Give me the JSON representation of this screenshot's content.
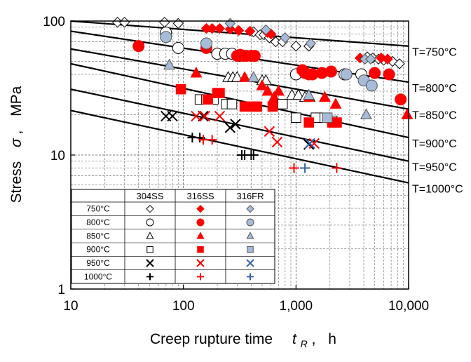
{
  "chart_data": {
    "type": "scatter",
    "xlabel": "Creep rupture time",
    "xlabel_symbol": "t",
    "xlabel_subscript": "R",
    "xlabel_unit": "h",
    "ylabel": "Stress",
    "ylabel_symbol": "σ",
    "ylabel_unit": "MPa",
    "x_scale": "log",
    "y_scale": "log",
    "xlim": [
      10,
      10000
    ],
    "ylim": [
      1,
      100
    ],
    "x_ticks": [
      10,
      100,
      1000,
      10000
    ],
    "x_tick_labels": [
      "10",
      "100",
      "1,000",
      "10,000"
    ],
    "y_ticks": [
      1,
      10,
      100
    ],
    "y_tick_labels": [
      "1",
      "10",
      "100"
    ],
    "grid": true,
    "curves": [
      {
        "label": "T=750°C",
        "points": [
          [
            10,
            100
          ],
          [
            10000,
            65
          ]
        ]
      },
      {
        "label": "T=800°C",
        "points": [
          [
            10,
            84
          ],
          [
            10000,
            35
          ]
        ]
      },
      {
        "label": "T=850°C",
        "points": [
          [
            10,
            62
          ],
          [
            10000,
            22
          ]
        ]
      },
      {
        "label": "T=900°C",
        "points": [
          [
            10,
            48
          ],
          [
            10000,
            13.5
          ]
        ]
      },
      {
        "label": "T=950°C",
        "points": [
          [
            10,
            31
          ],
          [
            10000,
            9
          ]
        ]
      },
      {
        "label": "T=1000°C",
        "points": [
          [
            10,
            21.5
          ],
          [
            10000,
            6.2
          ]
        ]
      }
    ],
    "legend": {
      "columns": [
        "304SS",
        "316SS",
        "316FR"
      ],
      "rows": [
        {
          "label": "750°C",
          "marker": "diamond"
        },
        {
          "label": "800°C",
          "marker": "circle"
        },
        {
          "label": "850°C",
          "marker": "triangle"
        },
        {
          "label": "900°C",
          "marker": "square"
        },
        {
          "label": "950°C",
          "marker": "cross"
        },
        {
          "label": "1000°C",
          "marker": "plus"
        }
      ],
      "placement": "bottom-left"
    },
    "colors": {
      "304SS": "#000000",
      "316SS": "#ff0000",
      "316FR": "#a6bcd9"
    },
    "series": [
      {
        "material": "304SS",
        "temp": "750°C",
        "marker": "diamond",
        "points": [
          [
            26,
            98
          ],
          [
            30,
            98
          ],
          [
            68,
            98
          ],
          [
            90,
            96
          ],
          [
            420,
            83
          ],
          [
            480,
            79
          ],
          [
            520,
            79
          ],
          [
            580,
            75
          ],
          [
            660,
            70
          ],
          [
            760,
            70
          ],
          [
            1000,
            65
          ],
          [
            1300,
            65
          ],
          [
            4300,
            54
          ],
          [
            4800,
            53
          ],
          [
            5400,
            52
          ],
          [
            6000,
            51
          ],
          [
            7200,
            50
          ],
          [
            8300,
            48
          ]
        ]
      },
      {
        "material": "316SS",
        "temp": "750°C",
        "marker": "diamond",
        "points": [
          [
            160,
            88
          ],
          [
            180,
            88
          ],
          [
            210,
            88
          ],
          [
            260,
            87
          ],
          [
            310,
            85
          ],
          [
            390,
            84
          ],
          [
            560,
            82
          ],
          [
            600,
            80
          ],
          [
            3700,
            53
          ],
          [
            5700,
            53
          ],
          [
            6500,
            52
          ]
        ]
      },
      {
        "material": "316FR",
        "temp": "750°C",
        "marker": "diamond",
        "points": [
          [
            260,
            96
          ],
          [
            540,
            86
          ],
          [
            800,
            75
          ],
          [
            1350,
            68
          ],
          [
            4100,
            52
          ],
          [
            4600,
            52
          ]
        ]
      },
      {
        "material": "304SS",
        "temp": "800°C",
        "marker": "circle",
        "points": [
          [
            70,
            82
          ],
          [
            90,
            63
          ],
          [
            200,
            57
          ],
          [
            235,
            57
          ],
          [
            270,
            57
          ],
          [
            310,
            55
          ],
          [
            1000,
            40
          ],
          [
            2700,
            40
          ],
          [
            3800,
            40
          ]
        ]
      },
      {
        "material": "316SS",
        "temp": "800°C",
        "marker": "circle",
        "points": [
          [
            40,
            65
          ],
          [
            160,
            63
          ],
          [
            300,
            55
          ],
          [
            320,
            56
          ],
          [
            340,
            55
          ],
          [
            360,
            55
          ],
          [
            400,
            55
          ],
          [
            430,
            55
          ],
          [
            1140,
            43
          ],
          [
            1200,
            41
          ],
          [
            1300,
            40
          ],
          [
            1400,
            40
          ],
          [
            1700,
            41
          ],
          [
            2050,
            42
          ],
          [
            5000,
            41
          ],
          [
            6700,
            40
          ],
          [
            8500,
            26
          ]
        ]
      },
      {
        "material": "316FR",
        "temp": "800°C",
        "marker": "circle",
        "points": [
          [
            70,
            76
          ],
          [
            160,
            68
          ],
          [
            2800,
            40
          ],
          [
            4000,
            36
          ],
          [
            4700,
            33
          ]
        ]
      },
      {
        "material": "304SS",
        "temp": "850°C",
        "marker": "triangle",
        "points": [
          [
            250,
            38
          ],
          [
            275,
            38
          ],
          [
            300,
            38
          ],
          [
            500,
            36
          ],
          [
            540,
            36
          ],
          [
            920,
            28
          ],
          [
            1050,
            28
          ],
          [
            1200,
            27
          ],
          [
            1320,
            27
          ]
        ]
      },
      {
        "material": "316SS",
        "temp": "850°C",
        "marker": "triangle",
        "points": [
          [
            130,
            41
          ],
          [
            350,
            38
          ],
          [
            500,
            33
          ],
          [
            560,
            30
          ],
          [
            640,
            27
          ],
          [
            700,
            30
          ],
          [
            1300,
            27
          ],
          [
            1800,
            27
          ],
          [
            2250,
            24
          ],
          [
            9700,
            20
          ]
        ]
      },
      {
        "material": "316FR",
        "temp": "850°C",
        "marker": "triangle",
        "points": [
          [
            75,
            47
          ],
          [
            420,
            38
          ],
          [
            1300,
            28
          ],
          [
            4200,
            20
          ]
        ]
      },
      {
        "material": "304SS",
        "temp": "900°C",
        "marker": "square",
        "points": [
          [
            140,
            26
          ],
          [
            160,
            26
          ],
          [
            185,
            26
          ],
          [
            240,
            24
          ],
          [
            270,
            24
          ],
          [
            760,
            24
          ],
          [
            1000,
            19
          ],
          [
            1500,
            19
          ],
          [
            1800,
            19
          ],
          [
            2100,
            18
          ]
        ]
      },
      {
        "material": "316SS",
        "temp": "900°C",
        "marker": "square",
        "points": [
          [
            95,
            31
          ],
          [
            200,
            29
          ],
          [
            165,
            26
          ],
          [
            210,
            29
          ],
          [
            350,
            23
          ],
          [
            420,
            23
          ],
          [
            450,
            23
          ],
          [
            620,
            23
          ],
          [
            1300,
            17.5
          ],
          [
            2100,
            17.5
          ],
          [
            2300,
            17.5
          ]
        ]
      },
      {
        "material": "316FR",
        "temp": "900°C",
        "marker": "square",
        "points": [
          [
            1900,
            19
          ]
        ]
      },
      {
        "material": "304SS",
        "temp": "950°C",
        "marker": "cross",
        "points": [
          [
            70,
            19.5
          ],
          [
            80,
            19.5
          ],
          [
            150,
            19.5
          ],
          [
            260,
            16
          ],
          [
            290,
            17
          ],
          [
            1300,
            12
          ]
        ]
      },
      {
        "material": "316SS",
        "temp": "950°C",
        "marker": "cross",
        "points": [
          [
            130,
            19.5
          ],
          [
            155,
            19.5
          ],
          [
            210,
            19.5
          ],
          [
            580,
            15
          ],
          [
            680,
            12.5
          ],
          [
            1450,
            12.2
          ]
        ]
      },
      {
        "material": "316FR",
        "temp": "950°C",
        "marker": "cross",
        "points": [
          [
            1330,
            12.2
          ]
        ]
      },
      {
        "material": "304SS",
        "temp": "1000°C",
        "marker": "plus",
        "points": [
          [
            120,
            13.5
          ],
          [
            140,
            13.5
          ],
          [
            330,
            10
          ],
          [
            350,
            10
          ],
          [
            400,
            10
          ],
          [
            420,
            10
          ]
        ]
      },
      {
        "material": "316SS",
        "temp": "1000°C",
        "marker": "plus",
        "points": [
          [
            150,
            13
          ],
          [
            180,
            13
          ],
          [
            960,
            8
          ],
          [
            2300,
            8
          ]
        ]
      },
      {
        "material": "316FR",
        "temp": "1000°C",
        "marker": "plus",
        "points": [
          [
            1200,
            8
          ]
        ]
      }
    ]
  }
}
